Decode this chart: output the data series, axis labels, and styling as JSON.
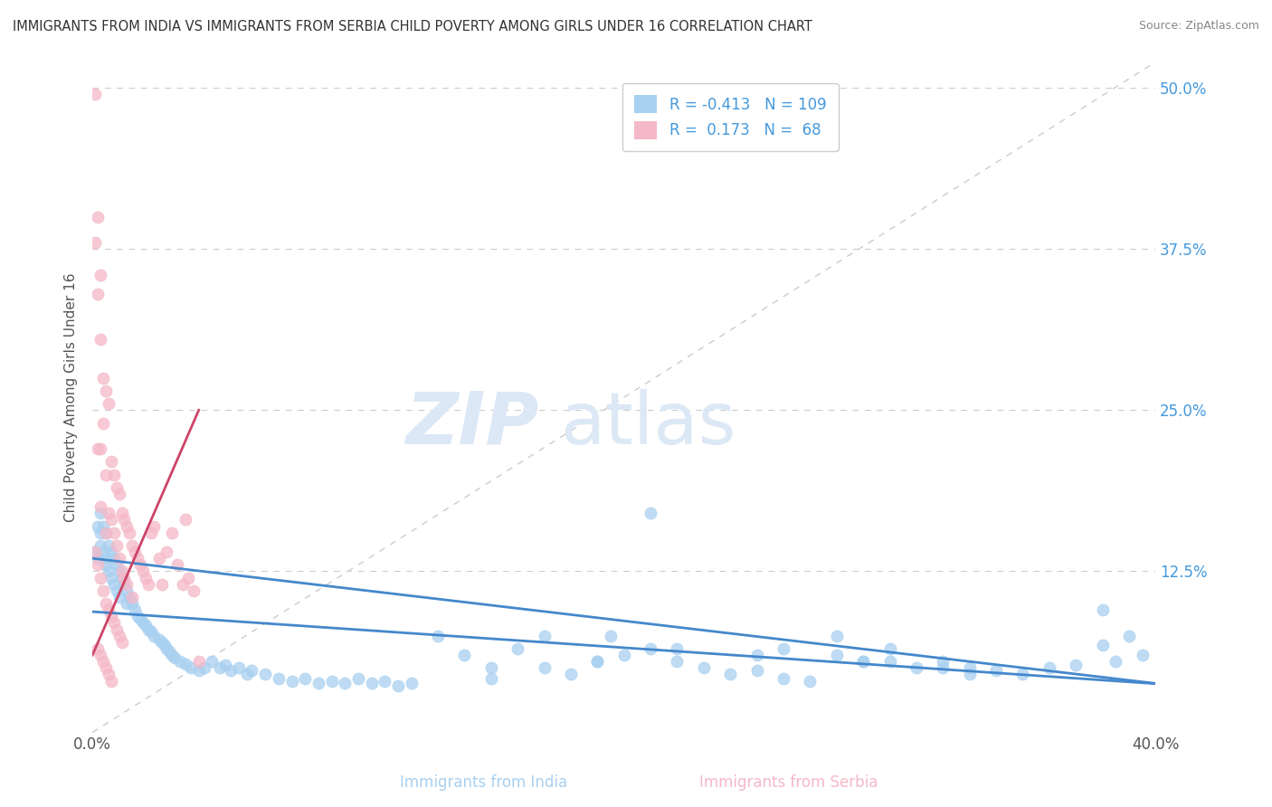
{
  "title": "IMMIGRANTS FROM INDIA VS IMMIGRANTS FROM SERBIA CHILD POVERTY AMONG GIRLS UNDER 16 CORRELATION CHART",
  "source": "Source: ZipAtlas.com",
  "xlabel_india": "Immigrants from India",
  "xlabel_serbia": "Immigrants from Serbia",
  "ylabel": "Child Poverty Among Girls Under 16",
  "xlim": [
    0.0,
    0.4
  ],
  "ylim": [
    0.0,
    0.52
  ],
  "ytick_positions": [
    0.0,
    0.125,
    0.25,
    0.375,
    0.5
  ],
  "ytick_labels": [
    "",
    "12.5%",
    "25.0%",
    "37.5%",
    "50.0%"
  ],
  "xtick_positions": [
    0.0,
    0.4
  ],
  "xtick_labels": [
    "0.0%",
    "40.0%"
  ],
  "legend_india_R": "-0.413",
  "legend_india_N": "109",
  "legend_serbia_R": "0.173",
  "legend_serbia_N": "68",
  "india_color": "#a8d0f0",
  "serbia_color": "#f5b8c8",
  "india_line_color": "#4488cc",
  "serbia_line_color": "#cc4466",
  "diagonal_color": "#cccccc",
  "watermark_zip": "ZIP",
  "watermark_atlas": "atlas",
  "background_color": "#ffffff",
  "india_scatter_x": [
    0.001,
    0.002,
    0.002,
    0.003,
    0.003,
    0.003,
    0.004,
    0.004,
    0.005,
    0.005,
    0.005,
    0.006,
    0.006,
    0.007,
    0.007,
    0.008,
    0.008,
    0.009,
    0.009,
    0.01,
    0.01,
    0.011,
    0.012,
    0.013,
    0.013,
    0.014,
    0.015,
    0.016,
    0.017,
    0.018,
    0.019,
    0.02,
    0.021,
    0.022,
    0.023,
    0.025,
    0.026,
    0.027,
    0.028,
    0.029,
    0.03,
    0.031,
    0.033,
    0.035,
    0.037,
    0.04,
    0.042,
    0.045,
    0.048,
    0.05,
    0.052,
    0.055,
    0.058,
    0.06,
    0.065,
    0.07,
    0.075,
    0.08,
    0.085,
    0.09,
    0.095,
    0.1,
    0.105,
    0.11,
    0.115,
    0.12,
    0.13,
    0.14,
    0.15,
    0.16,
    0.17,
    0.18,
    0.19,
    0.2,
    0.21,
    0.22,
    0.23,
    0.24,
    0.25,
    0.26,
    0.27,
    0.28,
    0.29,
    0.3,
    0.31,
    0.32,
    0.33,
    0.34,
    0.35,
    0.36,
    0.37,
    0.38,
    0.385,
    0.39,
    0.395,
    0.33,
    0.28,
    0.22,
    0.17,
    0.38,
    0.15,
    0.25,
    0.3,
    0.21,
    0.195,
    0.29,
    0.26,
    0.19,
    0.32
  ],
  "india_scatter_y": [
    0.14,
    0.16,
    0.135,
    0.17,
    0.155,
    0.145,
    0.16,
    0.14,
    0.155,
    0.135,
    0.13,
    0.145,
    0.125,
    0.14,
    0.12,
    0.135,
    0.115,
    0.13,
    0.11,
    0.125,
    0.105,
    0.12,
    0.115,
    0.11,
    0.1,
    0.105,
    0.1,
    0.095,
    0.09,
    0.088,
    0.085,
    0.083,
    0.08,
    0.078,
    0.075,
    0.072,
    0.07,
    0.068,
    0.065,
    0.063,
    0.06,
    0.058,
    0.055,
    0.053,
    0.05,
    0.048,
    0.05,
    0.055,
    0.05,
    0.052,
    0.048,
    0.05,
    0.045,
    0.048,
    0.045,
    0.042,
    0.04,
    0.042,
    0.038,
    0.04,
    0.038,
    0.042,
    0.038,
    0.04,
    0.036,
    0.038,
    0.075,
    0.06,
    0.05,
    0.065,
    0.05,
    0.045,
    0.055,
    0.06,
    0.065,
    0.055,
    0.05,
    0.045,
    0.048,
    0.042,
    0.04,
    0.06,
    0.055,
    0.065,
    0.05,
    0.055,
    0.05,
    0.048,
    0.045,
    0.05,
    0.052,
    0.068,
    0.055,
    0.075,
    0.06,
    0.045,
    0.075,
    0.065,
    0.075,
    0.095,
    0.042,
    0.06,
    0.055,
    0.17,
    0.075,
    0.055,
    0.065,
    0.055,
    0.05
  ],
  "serbia_scatter_x": [
    0.001,
    0.001,
    0.002,
    0.002,
    0.002,
    0.003,
    0.003,
    0.003,
    0.003,
    0.004,
    0.004,
    0.005,
    0.005,
    0.005,
    0.006,
    0.006,
    0.007,
    0.007,
    0.008,
    0.008,
    0.009,
    0.009,
    0.01,
    0.01,
    0.011,
    0.011,
    0.012,
    0.012,
    0.013,
    0.013,
    0.014,
    0.015,
    0.015,
    0.016,
    0.017,
    0.018,
    0.019,
    0.02,
    0.021,
    0.022,
    0.023,
    0.025,
    0.026,
    0.028,
    0.03,
    0.032,
    0.034,
    0.035,
    0.036,
    0.038,
    0.04,
    0.001,
    0.002,
    0.003,
    0.004,
    0.005,
    0.006,
    0.007,
    0.008,
    0.009,
    0.01,
    0.011,
    0.002,
    0.003,
    0.004,
    0.005,
    0.006,
    0.007
  ],
  "serbia_scatter_y": [
    0.495,
    0.38,
    0.4,
    0.34,
    0.22,
    0.355,
    0.305,
    0.22,
    0.175,
    0.275,
    0.24,
    0.265,
    0.2,
    0.155,
    0.255,
    0.17,
    0.21,
    0.165,
    0.2,
    0.155,
    0.19,
    0.145,
    0.185,
    0.135,
    0.17,
    0.125,
    0.165,
    0.12,
    0.16,
    0.115,
    0.155,
    0.145,
    0.105,
    0.14,
    0.135,
    0.13,
    0.125,
    0.12,
    0.115,
    0.155,
    0.16,
    0.135,
    0.115,
    0.14,
    0.155,
    0.13,
    0.115,
    0.165,
    0.12,
    0.11,
    0.055,
    0.14,
    0.13,
    0.12,
    0.11,
    0.1,
    0.095,
    0.09,
    0.085,
    0.08,
    0.075,
    0.07,
    0.065,
    0.06,
    0.055,
    0.05,
    0.045,
    0.04
  ]
}
